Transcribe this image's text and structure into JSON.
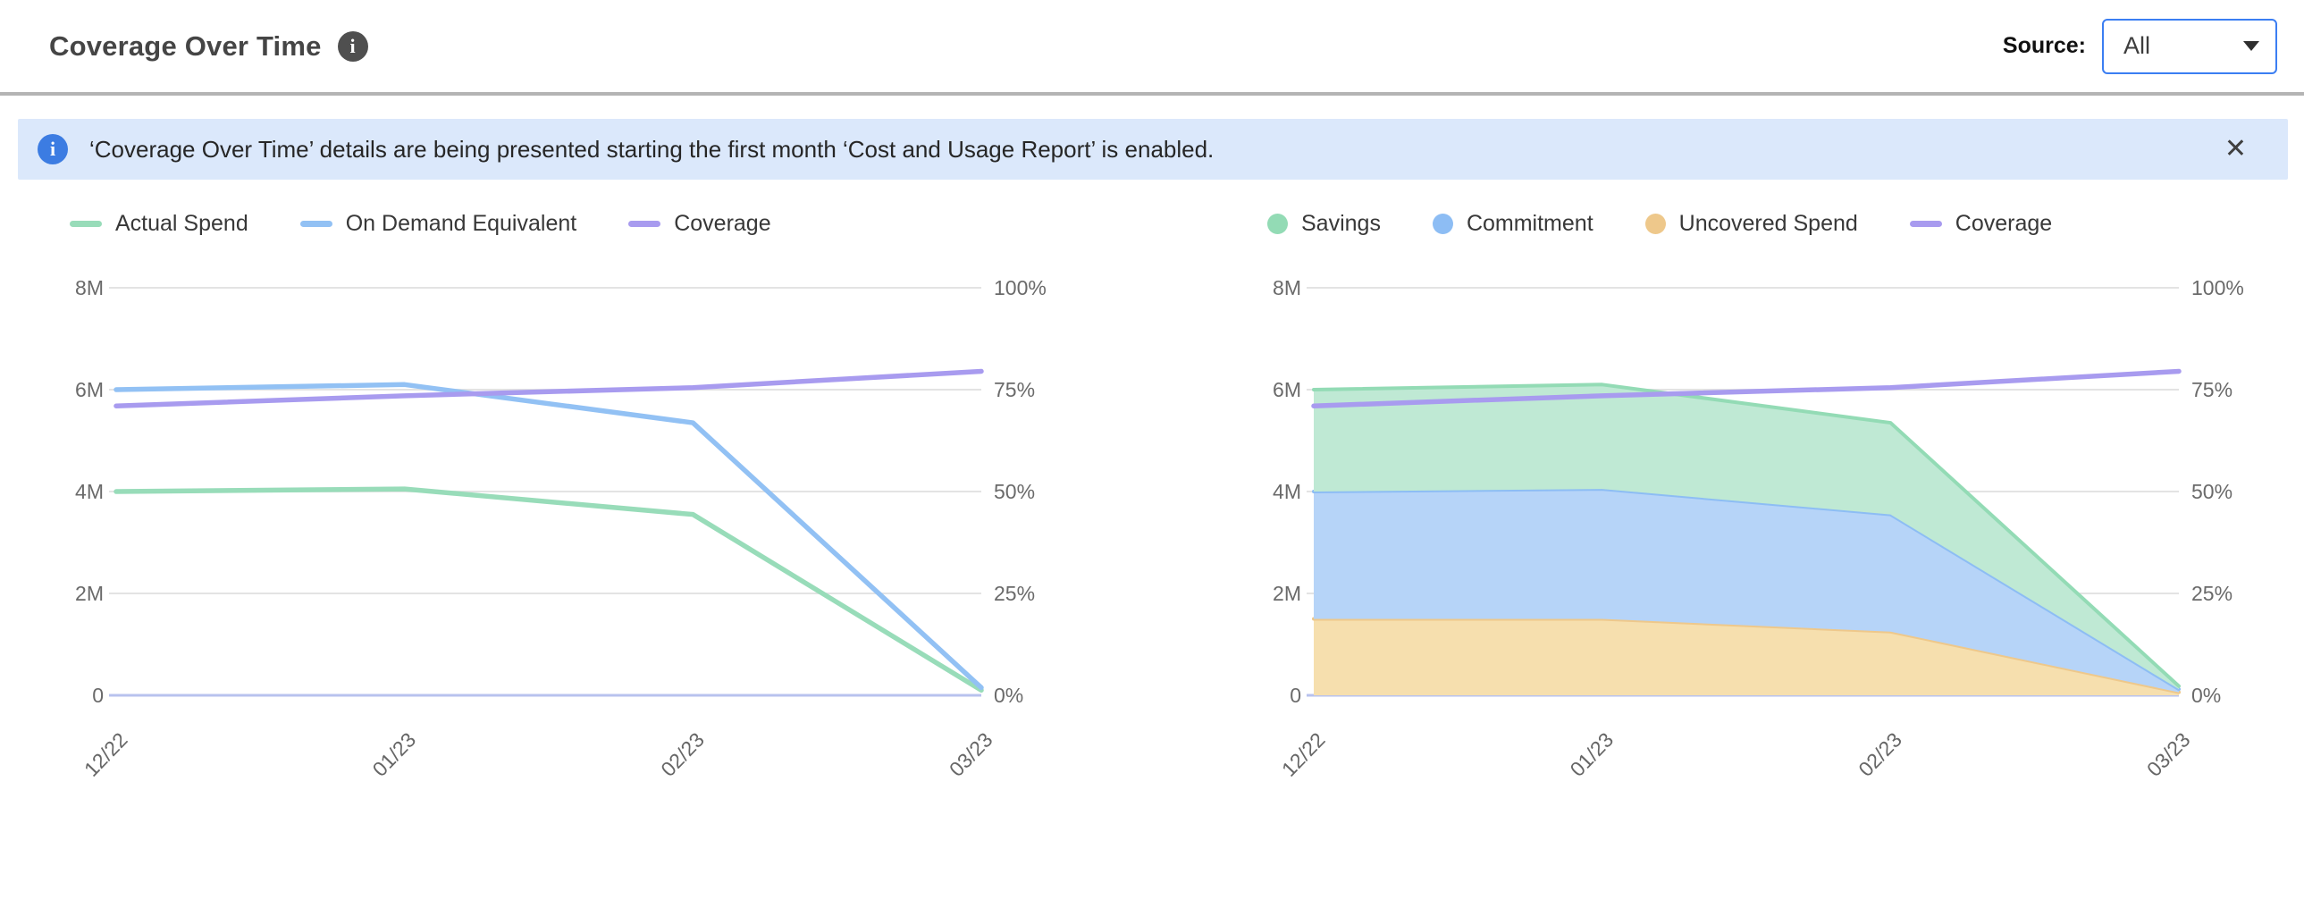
{
  "header": {
    "title": "Coverage Over Time",
    "source_label": "Source:",
    "source_value": "All"
  },
  "icons": {
    "header_info": "i",
    "banner_info": "i",
    "close": "✕"
  },
  "banner": {
    "text": "‘Coverage Over Time’ details are being presented starting the first month ‘Cost and Usage Report’ is enabled."
  },
  "colors": {
    "accent_blue": "#3b7ef2",
    "banner_bg": "#dbe8fb",
    "banner_icon": "#3c7ce2",
    "divider": "#b4b4b4",
    "gridline": "#e3e3e3",
    "zero_axis": "#b8c2ee",
    "axis_text": "#6a6a6a"
  },
  "chart_data": [
    {
      "type": "line",
      "categories": [
        "12/22",
        "01/23",
        "02/23",
        "03/23"
      ],
      "yticks_left": [
        "8M",
        "6M",
        "4M",
        "2M",
        "0"
      ],
      "yticks_right": [
        "100%",
        "75%",
        "50%",
        "25%",
        "0%"
      ],
      "left_max": 8,
      "right_max": 100,
      "legend_position": "top",
      "grid": "horizontal",
      "series": [
        {
          "name": "Actual Spend",
          "type": "line",
          "axis": "left",
          "color": "#98dcb9",
          "values": [
            4.0,
            4.05,
            3.55,
            0.1
          ]
        },
        {
          "name": "On Demand Equivalent",
          "type": "line",
          "axis": "left",
          "color": "#92c1f4",
          "values": [
            6.0,
            6.1,
            5.35,
            0.15
          ]
        },
        {
          "name": "Coverage",
          "type": "line",
          "axis": "right",
          "color": "#a89bef",
          "values": [
            71,
            73.5,
            75.5,
            79.5
          ]
        }
      ]
    },
    {
      "type": "area",
      "categories": [
        "12/22",
        "01/23",
        "02/23",
        "03/23"
      ],
      "yticks_left": [
        "8M",
        "6M",
        "4M",
        "2M",
        "0"
      ],
      "yticks_right": [
        "100%",
        "75%",
        "50%",
        "25%",
        "0%"
      ],
      "left_max": 8,
      "right_max": 100,
      "legend_position": "top",
      "grid": "horizontal",
      "series": [
        {
          "name": "Savings",
          "type": "area",
          "axis": "left",
          "color": "#93dbb5",
          "fill": "#bfe9d4",
          "values": [
            2.0,
            2.05,
            1.8,
            0.06
          ]
        },
        {
          "name": "Commitment",
          "type": "area",
          "axis": "left",
          "color": "#8dbdf4",
          "fill": "#b6d4f8",
          "values": [
            2.5,
            2.55,
            2.3,
            0.06
          ]
        },
        {
          "name": "Uncovered Spend",
          "type": "area",
          "axis": "left",
          "color": "#eec88b",
          "fill": "#f6dfae",
          "values": [
            1.5,
            1.5,
            1.25,
            0.06
          ]
        },
        {
          "name": "Coverage",
          "type": "line",
          "axis": "right",
          "color": "#a89bef",
          "values": [
            71,
            73.5,
            75.5,
            79.5
          ]
        }
      ]
    }
  ]
}
